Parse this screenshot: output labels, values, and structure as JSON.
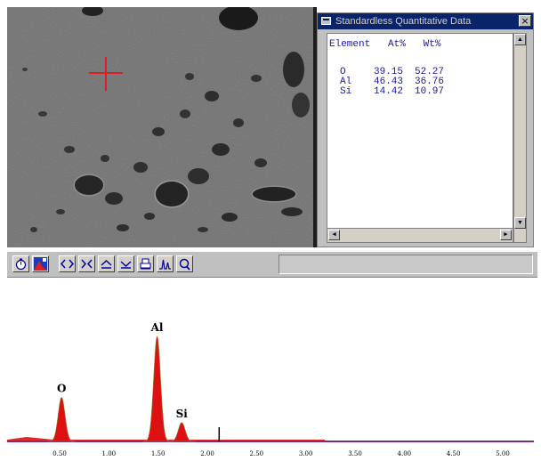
{
  "sem_image": {
    "cursor_color": "#e02020"
  },
  "data_window": {
    "title": "Standardless Quantitative Data",
    "columns": [
      "Element",
      "At%",
      "Wt%"
    ],
    "rows": [
      {
        "element": "O",
        "at": "39.15",
        "wt": "52.27"
      },
      {
        "element": "Al",
        "at": "46.43",
        "wt": "36.76"
      },
      {
        "element": "Si",
        "at": "14.42",
        "wt": "10.97"
      }
    ],
    "text_color": "#1818a0",
    "titlebar_color": "#0a246a"
  },
  "toolbar": {
    "buttons": [
      {
        "icon": "timer-icon"
      },
      {
        "icon": "spectrum-color-icon"
      },
      {
        "icon": "expand-horizontal-icon"
      },
      {
        "icon": "compress-horizontal-icon"
      },
      {
        "icon": "expand-vertical-icon"
      },
      {
        "icon": "compress-vertical-icon"
      },
      {
        "icon": "print-icon"
      },
      {
        "icon": "peak-label-icon"
      },
      {
        "icon": "zoom-icon"
      }
    ]
  },
  "chart_data": {
    "type": "area",
    "title": "",
    "xlabel": "",
    "ylabel": "",
    "xlim": [
      0.2,
      5.25
    ],
    "ylim": [
      0,
      100
    ],
    "x_ticks": [
      "0.50",
      "1.00",
      "1.50",
      "2.00",
      "2.50",
      "3.00",
      "3.50",
      "4.00",
      "4.50",
      "5.00"
    ],
    "peaks": [
      {
        "label": "O",
        "x": 0.52,
        "height": 42,
        "width": 0.035
      },
      {
        "label": "Al",
        "x": 1.49,
        "height": 100,
        "width": 0.035
      },
      {
        "label": "Si",
        "x": 1.74,
        "height": 18,
        "width": 0.035
      }
    ],
    "marker": {
      "x": 2.12
    },
    "fill_color": "#dd1111",
    "baseline_color": "#7a2a7a"
  }
}
